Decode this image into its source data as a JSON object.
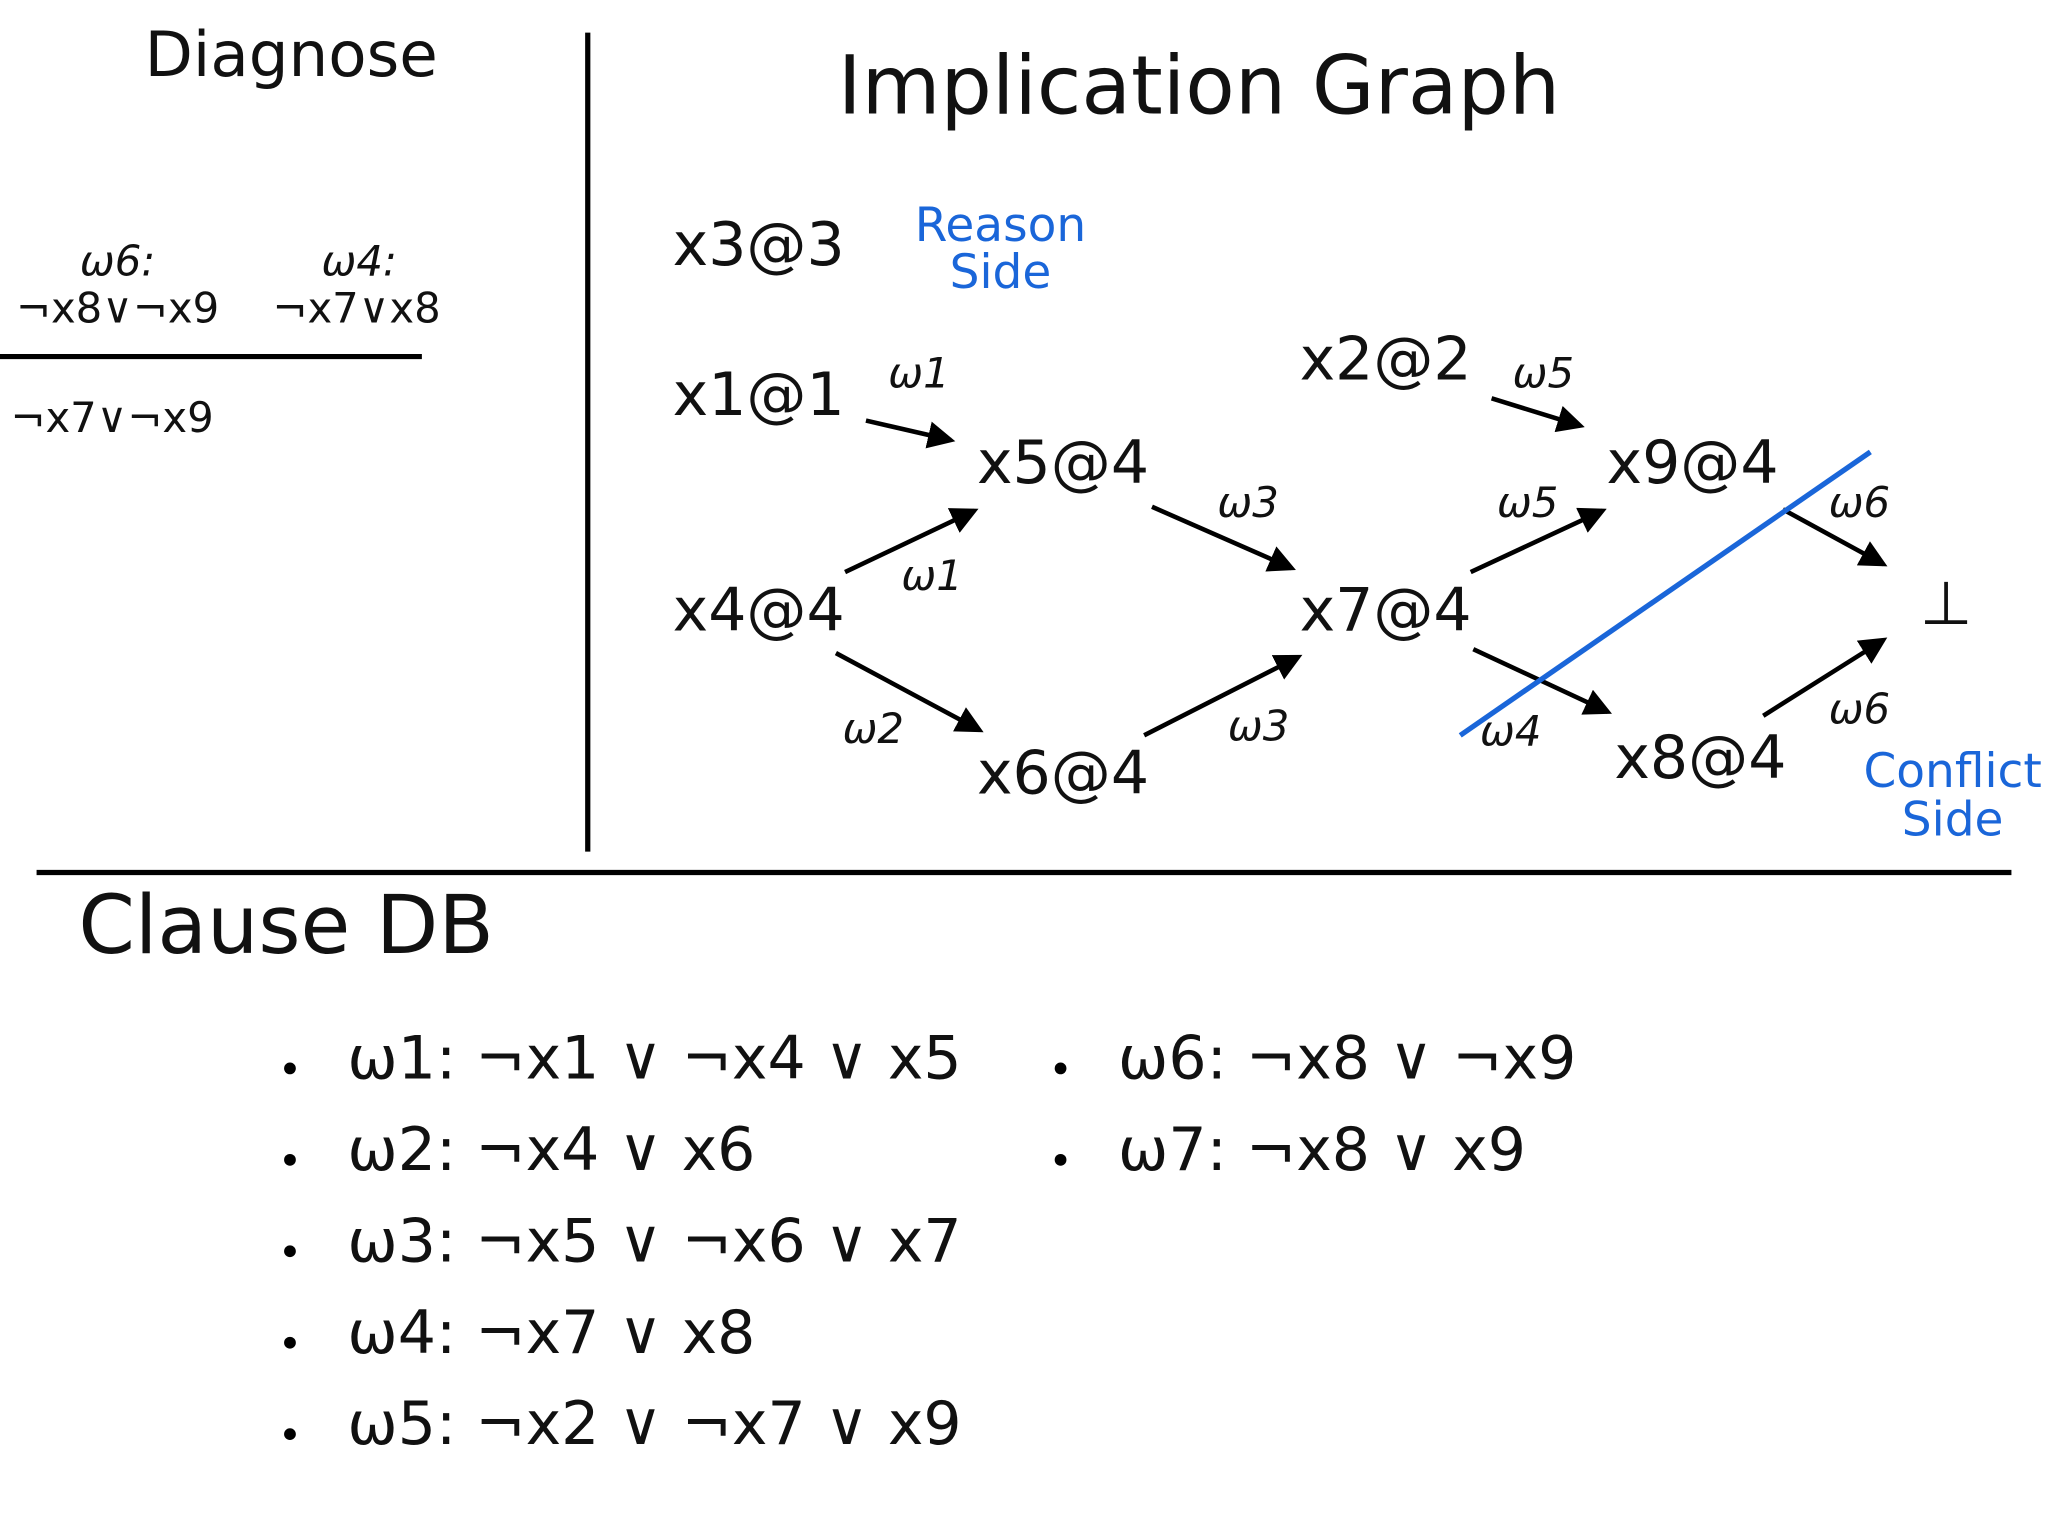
{
  "diagnose": {
    "title": "Diagnose",
    "clauses": [
      {
        "label": "ω6:",
        "clause": "¬x8∨¬x9"
      },
      {
        "label": "ω4:",
        "clause": "¬x7∨x8"
      }
    ],
    "result": "¬x7∨¬x9"
  },
  "graph": {
    "title": "Implication Graph",
    "nodes": [
      "x3@3",
      "x1@1",
      "x2@2",
      "x5@4",
      "x9@4",
      "x4@4",
      "x7@4",
      "⊥",
      "x6@4",
      "x8@4"
    ],
    "edge_labels": [
      "ω1",
      "ω1",
      "ω2",
      "ω3",
      "ω3",
      "ω5",
      "ω5",
      "ω6",
      "ω6",
      "ω4"
    ],
    "reason_side": [
      "Reason",
      "Side"
    ],
    "conflict_side": [
      "Conflict",
      "Side"
    ]
  },
  "clause_db": {
    "title": "Clause DB",
    "items": [
      "ω1: ¬x1 ∨ ¬x4 ∨ x5",
      "ω2: ¬x4 ∨ x6",
      "ω3: ¬x5 ∨ ¬x6 ∨ x7",
      "ω4: ¬x7 ∨ x8",
      "ω5: ¬x2 ∨ ¬x7 ∨ x9",
      "ω6: ¬x8 ∨ ¬x9",
      "ω7: ¬x8 ∨ x9"
    ]
  }
}
